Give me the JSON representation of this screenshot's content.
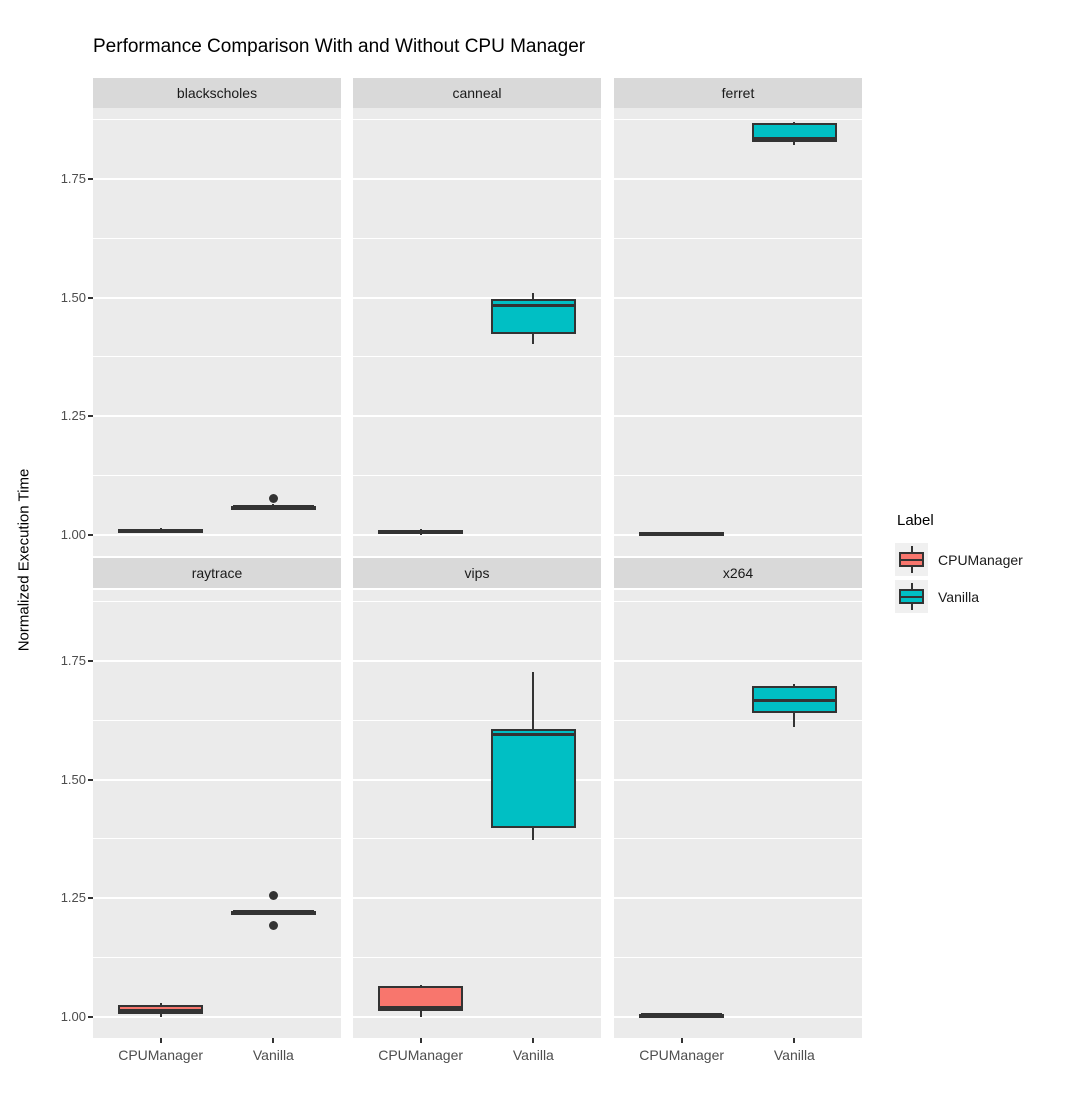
{
  "chart_data": {
    "type": "boxplot",
    "title": "Performance Comparison With and Without CPU Manager",
    "ylabel": "Normalized Execution Time",
    "xlabel": "",
    "ylim": [
      0.955,
      1.9
    ],
    "y_ticks": [
      1.0,
      1.25,
      1.5,
      1.75
    ],
    "y_tick_labels": [
      "1.00",
      "1.25",
      "1.50",
      "1.75"
    ],
    "y_minor_gridlines": [
      1.125,
      1.375,
      1.625,
      1.875
    ],
    "x_categories": [
      "CPUManager",
      "Vanilla"
    ],
    "facet_layout": {
      "rows": 2,
      "cols": 3,
      "grid": "on"
    },
    "legend": {
      "title": "Label",
      "position": "right",
      "entries": [
        {
          "label": "CPUManager",
          "color": "#F8766D"
        },
        {
          "label": "Vanilla",
          "color": "#00BFC4"
        }
      ]
    },
    "facets": [
      {
        "name": "blackscholes",
        "boxes": [
          {
            "group": "CPUManager",
            "min": 1.004,
            "q1": 1.007,
            "median": 1.009,
            "q3": 1.011,
            "max": 1.014,
            "outliers": []
          },
          {
            "group": "Vanilla",
            "min": 1.053,
            "q1": 1.056,
            "median": 1.059,
            "q3": 1.061,
            "max": 1.064,
            "outliers": [
              1.076
            ]
          }
        ]
      },
      {
        "name": "canneal",
        "boxes": [
          {
            "group": "CPUManager",
            "min": 0.999,
            "q1": 1.001,
            "median": 1.005,
            "q3": 1.009,
            "max": 1.011,
            "outliers": []
          },
          {
            "group": "Vanilla",
            "min": 1.403,
            "q1": 1.424,
            "median": 1.484,
            "q3": 1.497,
            "max": 1.51,
            "outliers": []
          }
        ]
      },
      {
        "name": "ferret",
        "boxes": [
          {
            "group": "CPUManager",
            "min": 0.998,
            "q1": 1.0,
            "median": 1.003,
            "q3": 1.005,
            "max": 1.006,
            "outliers": []
          },
          {
            "group": "Vanilla",
            "min": 1.823,
            "q1": 1.829,
            "median": 1.835,
            "q3": 1.868,
            "max": 1.871,
            "outliers": []
          }
        ]
      },
      {
        "name": "raytrace",
        "boxes": [
          {
            "group": "CPUManager",
            "min": 1.0,
            "q1": 1.006,
            "median": 1.014,
            "q3": 1.025,
            "max": 1.029,
            "outliers": []
          },
          {
            "group": "Vanilla",
            "min": 1.218,
            "q1": 1.219,
            "median": 1.221,
            "q3": 1.223,
            "max": 1.224,
            "outliers": [
              1.256,
              1.192
            ]
          }
        ]
      },
      {
        "name": "vips",
        "boxes": [
          {
            "group": "CPUManager",
            "min": 1.0,
            "q1": 1.011,
            "median": 1.02,
            "q3": 1.065,
            "max": 1.067,
            "outliers": []
          },
          {
            "group": "Vanilla",
            "min": 1.372,
            "q1": 1.398,
            "median": 1.596,
            "q3": 1.607,
            "max": 1.728,
            "outliers": []
          }
        ]
      },
      {
        "name": "x264",
        "boxes": [
          {
            "group": "CPUManager",
            "min": 1.0,
            "q1": 1.002,
            "median": 1.004,
            "q3": 1.006,
            "max": 1.008,
            "outliers": []
          },
          {
            "group": "Vanilla",
            "min": 1.61,
            "q1": 1.64,
            "median": 1.667,
            "q3": 1.698,
            "max": 1.701,
            "outliers": []
          }
        ]
      }
    ]
  },
  "theme": {
    "panel_background": "#EBEBEB",
    "strip_background": "#D9D9D9",
    "grid_color": "#FFFFFF",
    "box_line_color": "#333333",
    "outlier_color": "#333333",
    "axis_text_color": "#4D4D4D",
    "strip_text_color": "#1A1A1A",
    "title_color": "#000000"
  }
}
